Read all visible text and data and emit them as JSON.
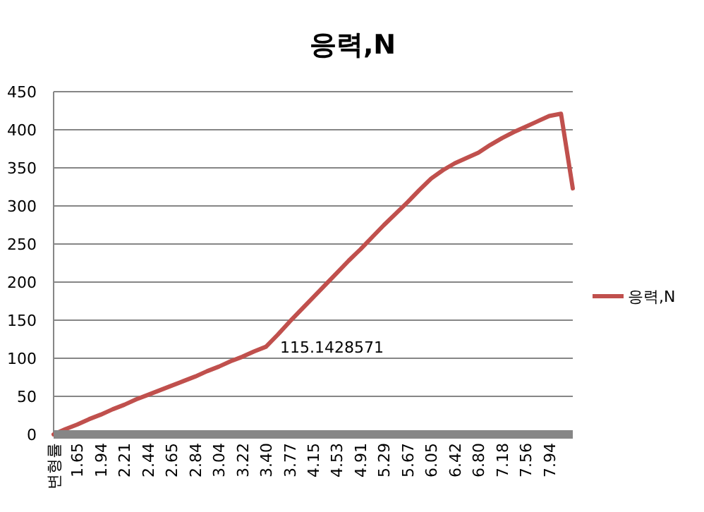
{
  "chart_data": {
    "type": "line",
    "title": "응력,N",
    "categories": [
      "변형률",
      null,
      "1.65",
      null,
      "1.94",
      null,
      "2.21",
      null,
      "2.44",
      null,
      "2.65",
      null,
      "2.84",
      null,
      "3.04",
      null,
      "3.22",
      null,
      "3.40",
      null,
      "3.77",
      null,
      "4.15",
      null,
      "4.53",
      null,
      "4.91",
      null,
      "5.29",
      null,
      "5.67",
      null,
      "6.05",
      null,
      "6.42",
      null,
      "6.80",
      null,
      "7.18",
      null,
      "7.56",
      null,
      "7.94",
      null,
      null
    ],
    "series": [
      {
        "name": "응력,N",
        "color": "#c0504d",
        "values": [
          0,
          7,
          13,
          20,
          26,
          33,
          39,
          46,
          52,
          58,
          64,
          70,
          76,
          83,
          89,
          96,
          102,
          109,
          115.1428571,
          131,
          148,
          164,
          180,
          196,
          212,
          228,
          243,
          259,
          275,
          290,
          305,
          321,
          336,
          347,
          356,
          363,
          370,
          380,
          389,
          397,
          404,
          411,
          418,
          421,
          323
        ]
      }
    ],
    "ylim": [
      0,
      450
    ],
    "yticks": [
      0,
      50,
      100,
      150,
      200,
      250,
      300,
      350,
      400,
      450
    ],
    "grid": "y",
    "legend": "right",
    "annotations": [
      {
        "text": "115.1428571",
        "x": "3.40",
        "y": 115.1428571
      }
    ]
  }
}
